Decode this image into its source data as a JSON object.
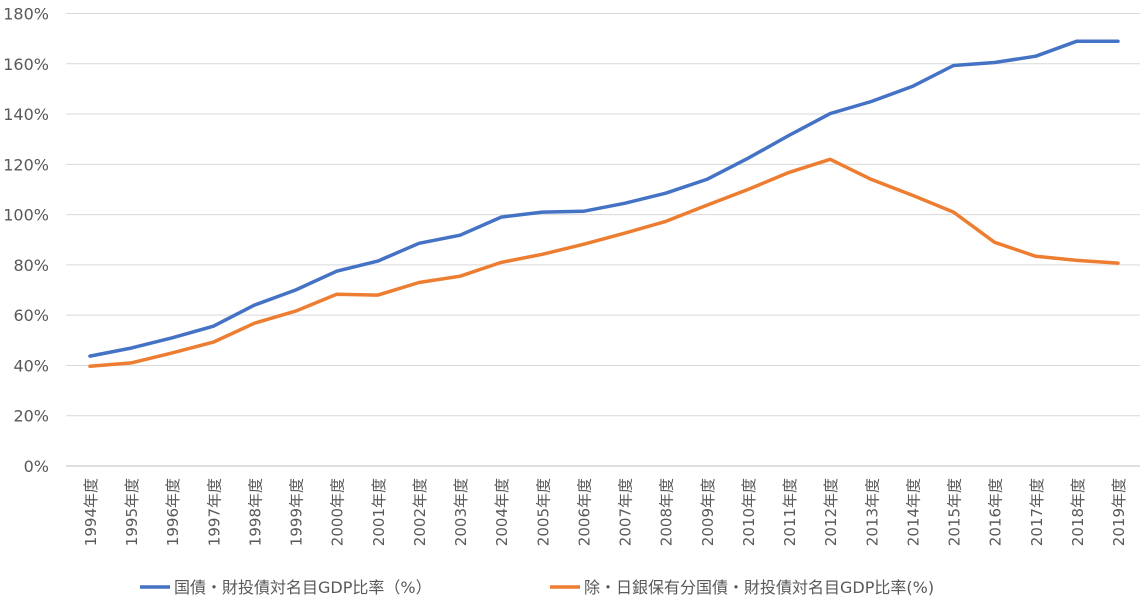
{
  "chart_data": {
    "type": "line",
    "title": "",
    "xlabel": "",
    "ylabel": "",
    "ylim": [
      0,
      180
    ],
    "y_ticks": [
      "0%",
      "20%",
      "40%",
      "60%",
      "80%",
      "100%",
      "120%",
      "140%",
      "160%",
      "180%"
    ],
    "grid": true,
    "legend_position": "bottom",
    "categories": [
      "1994年度",
      "1995年度",
      "1996年度",
      "1997年度",
      "1998年度",
      "1999年度",
      "2000年度",
      "2001年度",
      "2002年度",
      "2003年度",
      "2004年度",
      "2005年度",
      "2006年度",
      "2007年度",
      "2008年度",
      "2009年度",
      "2010年度",
      "2011年度",
      "2012年度",
      "2013年度",
      "2014年度",
      "2015年度",
      "2016年度",
      "2017年度",
      "2018年度",
      "2019年度"
    ],
    "series": [
      {
        "name": "国債・財投債対名目GDP比率（%）",
        "color": "#4472C4",
        "values": [
          43.7,
          46.9,
          51,
          55.6,
          64,
          70,
          77.5,
          81.5,
          88.6,
          91.8,
          99,
          101,
          101.3,
          104.5,
          108.5,
          114,
          122.4,
          131.5,
          140.2,
          145,
          151,
          159.3,
          160.5,
          163,
          169,
          169
        ]
      },
      {
        "name": "除・日銀保有分国債・財投債対名目GDP比率(%)",
        "color": "#ED7D31",
        "values": [
          39.7,
          41,
          45,
          49.3,
          56.8,
          61.6,
          68.3,
          68,
          73,
          75.5,
          81,
          84.2,
          88.2,
          92.6,
          97.3,
          103.7,
          110,
          116.8,
          122,
          114,
          107.7,
          101,
          89,
          83.4,
          81.8,
          80.7
        ]
      }
    ]
  }
}
